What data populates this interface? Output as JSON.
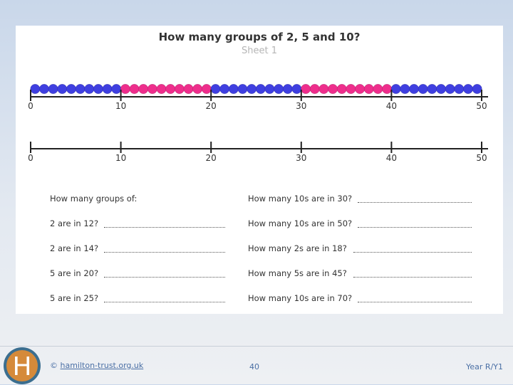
{
  "sheet": {
    "title": "How many groups of 2, 5 and 10?",
    "subtitle": "Sheet 1"
  },
  "number_line": {
    "tick_labels": [
      "0",
      "10",
      "20",
      "30",
      "40",
      "50"
    ],
    "bead_pattern": [
      "blue",
      "blue",
      "blue",
      "blue",
      "blue",
      "blue",
      "blue",
      "blue",
      "blue",
      "blue",
      "pink",
      "pink",
      "pink",
      "pink",
      "pink",
      "pink",
      "pink",
      "pink",
      "pink",
      "pink",
      "blue",
      "blue",
      "blue",
      "blue",
      "blue",
      "blue",
      "blue",
      "blue",
      "blue",
      "blue",
      "pink",
      "pink",
      "pink",
      "pink",
      "pink",
      "pink",
      "pink",
      "pink",
      "pink",
      "pink",
      "blue",
      "blue",
      "blue",
      "blue",
      "blue",
      "blue",
      "blue",
      "blue",
      "blue",
      "blue"
    ],
    "colors": {
      "blue": "#3f3fe0",
      "pink": "#ee2e8c"
    }
  },
  "questions": {
    "left": [
      "How many groups of:",
      "2 are in 12?",
      "2 are in 14?",
      "5 are in 20?",
      "5 are in 25?"
    ],
    "right": [
      "How many 10s are in 30?",
      "How many 10s are in 50?",
      "How many 2s are in 18?",
      "How many 5s are in 45?",
      "How many 10s are in 70?"
    ]
  },
  "footer": {
    "logo_letter": "H",
    "copyright_symbol": "©",
    "copyright_link": "hamilton-trust.org.uk",
    "page_number": "40",
    "year_label": "Year R/Y1"
  }
}
